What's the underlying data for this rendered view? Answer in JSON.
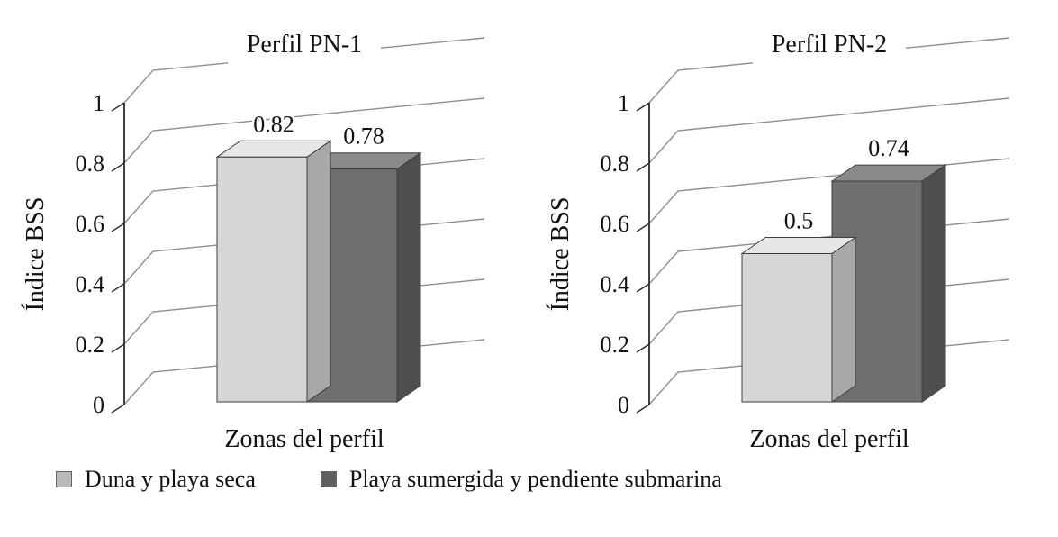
{
  "figure": {
    "type": "grouped-3d-bar-figure",
    "panels": 2
  },
  "colors": {
    "background": "#ffffff",
    "grid": "#8f8f8f",
    "axis": "#2b2b2b",
    "text": "#111111"
  },
  "legend": {
    "position": "bottom",
    "items": [
      {
        "label": "Duna y playa seca",
        "color": "#b9b9b9"
      },
      {
        "label": "Playa sumergida y pendiente submarina",
        "color": "#5f5f5f"
      }
    ]
  },
  "chart_data": [
    {
      "type": "bar",
      "projection": "3d",
      "title": "Perfil PN-1",
      "xlabel": "Zonas del perfil",
      "ylabel": "Índice BSS",
      "ylim": [
        0,
        1
      ],
      "yticks": [
        0,
        0.2,
        0.4,
        0.6,
        0.8,
        1
      ],
      "grid": "on",
      "categories": [
        "Duna y playa seca",
        "Playa sumergida y pendiente submarina"
      ],
      "values": [
        0.82,
        0.78
      ],
      "value_labels": [
        "0.82",
        "0.78"
      ],
      "series_colors": [
        {
          "front": "#d6d6d6",
          "top": "#e7e7e7",
          "side": "#a8a8a8"
        },
        {
          "front": "#6f6f6f",
          "top": "#898989",
          "side": "#4e4e4e"
        }
      ]
    },
    {
      "type": "bar",
      "projection": "3d",
      "title": "Perfil PN-2",
      "xlabel": "Zonas del perfil",
      "ylabel": "Índice BSS",
      "ylim": [
        0,
        1
      ],
      "yticks": [
        0,
        0.2,
        0.4,
        0.6,
        0.8,
        1
      ],
      "grid": "on",
      "categories": [
        "Duna y playa seca",
        "Playa sumergida y pendiente submarina"
      ],
      "values": [
        0.5,
        0.74
      ],
      "value_labels": [
        "0.5",
        "0.74"
      ],
      "series_colors": [
        {
          "front": "#d6d6d6",
          "top": "#e7e7e7",
          "side": "#a8a8a8"
        },
        {
          "front": "#6f6f6f",
          "top": "#898989",
          "side": "#4e4e4e"
        }
      ]
    }
  ]
}
